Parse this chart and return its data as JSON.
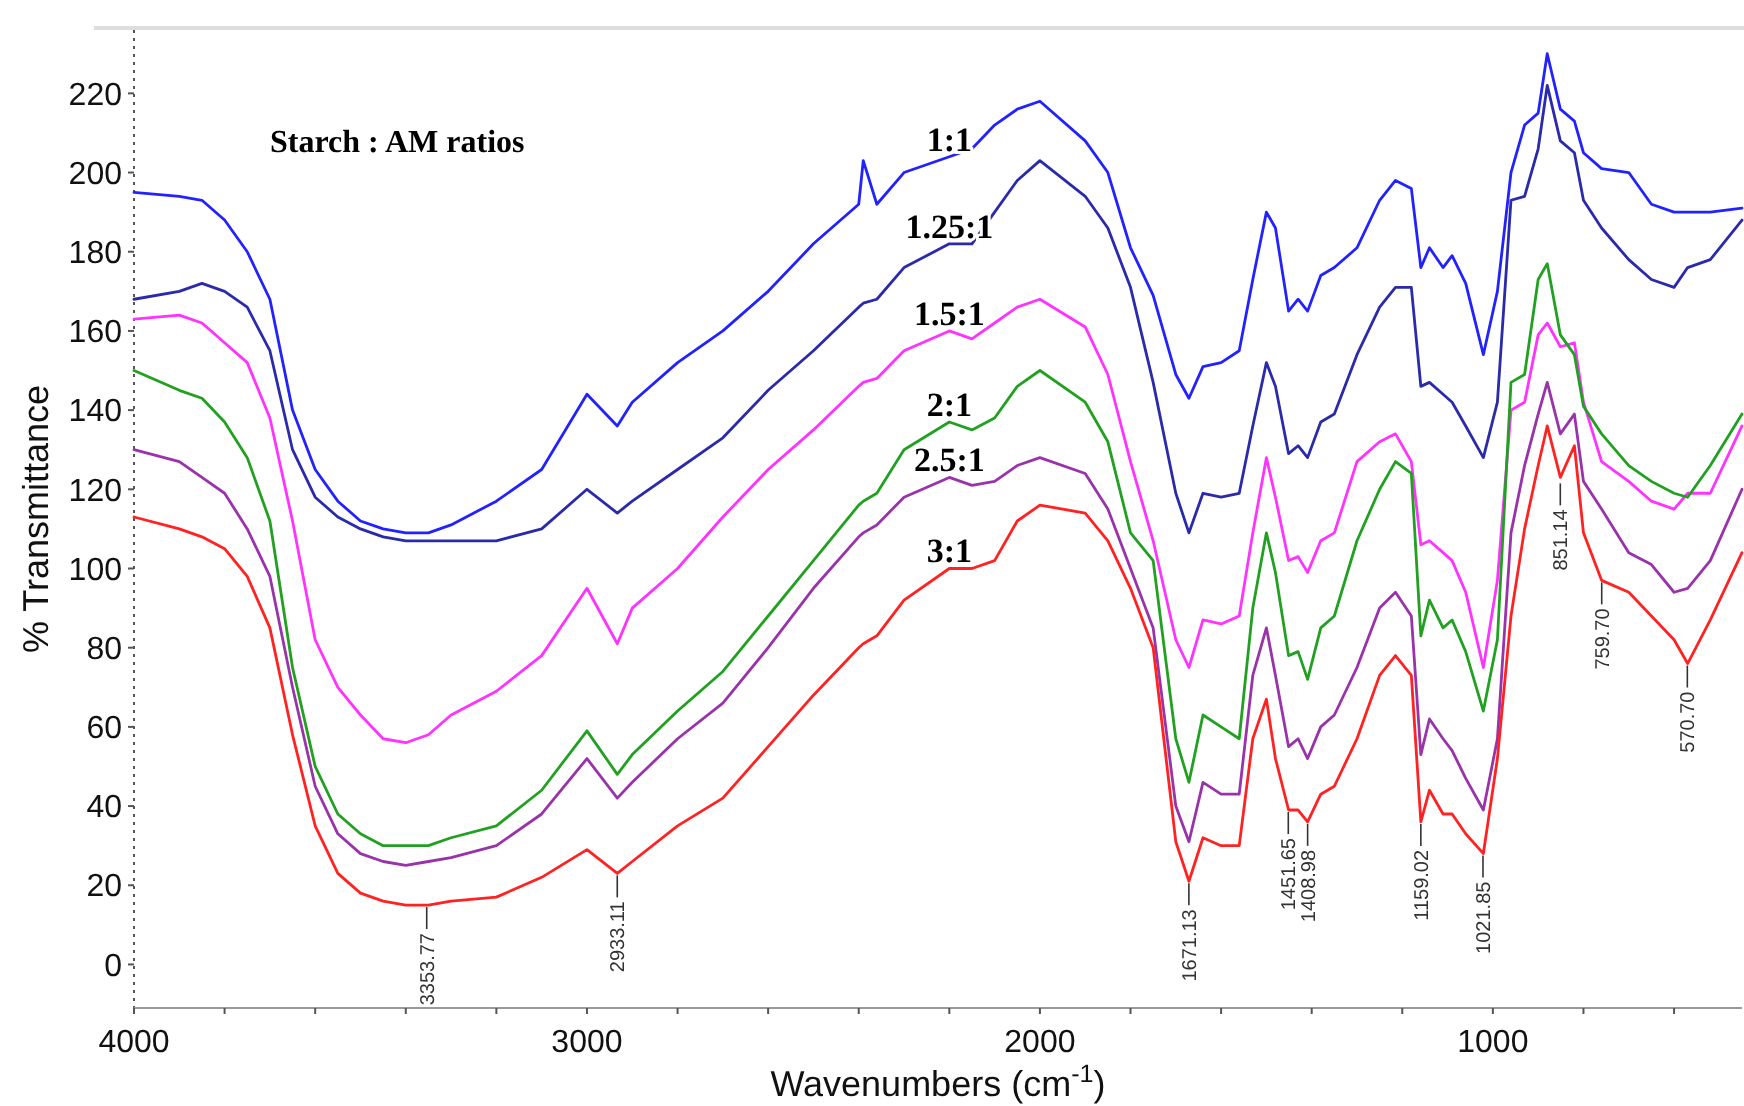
{
  "chart_data": {
    "type": "line",
    "legend_title": "Starch : AM ratios",
    "xlabel": "Wavenumbers (cm$^{-1}$)",
    "ylabel": "% Transmittance",
    "xlim": [
      4000,
      450
    ],
    "ylim": [
      -11,
      236
    ],
    "xticks": [
      4000,
      {
        "value": 3800,
        "label": null
      },
      {
        "value": 3600,
        "label": null
      },
      {
        "value": 3400,
        "label": null
      },
      {
        "value": 3200,
        "label": null
      },
      3000,
      {
        "value": 2800,
        "label": null
      },
      {
        "value": 2600,
        "label": null
      },
      {
        "value": 2400,
        "label": null
      },
      {
        "value": 2200,
        "label": null
      },
      2000,
      {
        "value": 1800,
        "label": null
      },
      {
        "value": 1600,
        "label": null
      },
      {
        "value": 1400,
        "label": null
      },
      {
        "value": 1200,
        "label": null
      },
      1000,
      {
        "value": 800,
        "label": null
      },
      {
        "value": 600,
        "label": null
      }
    ],
    "yticks": [
      0,
      20,
      40,
      60,
      80,
      100,
      120,
      140,
      160,
      180,
      200,
      220
    ],
    "x": [
      4000,
      3900,
      3850,
      3800,
      3750,
      3700,
      3650,
      3600,
      3550,
      3500,
      3450,
      3400,
      3350,
      3300,
      3200,
      3100,
      3000,
      2933,
      2900,
      2800,
      2700,
      2600,
      2500,
      2400,
      2390,
      2360,
      2300,
      2200,
      2150,
      2100,
      2050,
      2000,
      1900,
      1850,
      1800,
      1750,
      1700,
      1671,
      1640,
      1600,
      1560,
      1530,
      1500,
      1480,
      1451,
      1430,
      1409,
      1380,
      1350,
      1300,
      1250,
      1215,
      1180,
      1159,
      1140,
      1110,
      1090,
      1060,
      1021,
      990,
      960,
      930,
      900,
      880,
      851,
      820,
      800,
      760,
      700,
      650,
      600,
      570,
      520,
      450
    ],
    "series": [
      {
        "name": "1:1",
        "color": "#2222ff",
        "values": [
          195,
          194,
          193,
          188,
          180,
          168,
          140,
          125,
          117,
          112,
          110,
          109,
          109,
          111,
          117,
          125,
          144,
          136,
          142,
          152,
          160,
          170,
          182,
          192,
          203,
          192,
          200,
          204,
          206,
          212,
          216,
          218,
          208,
          200,
          181,
          169,
          149,
          143,
          151,
          152,
          155,
          173,
          190,
          186,
          165,
          168,
          165,
          174,
          176,
          181,
          193,
          198,
          196,
          176,
          181,
          176,
          179,
          172,
          154,
          170,
          200,
          212,
          215,
          230,
          216,
          213,
          205,
          201,
          200,
          192,
          190,
          190,
          190,
          191
        ]
      },
      {
        "name": "1.25:1",
        "color": "#2a2aaa",
        "values": [
          168,
          170,
          172,
          170,
          166,
          155,
          130,
          118,
          113,
          110,
          108,
          107,
          107,
          107,
          107,
          110,
          120,
          114,
          117,
          125,
          133,
          145,
          155,
          166,
          167,
          168,
          176,
          182,
          182,
          190,
          198,
          203,
          194,
          186,
          171,
          147,
          119,
          109,
          119,
          118,
          119,
          136,
          152,
          146,
          129,
          131,
          128,
          137,
          139,
          154,
          166,
          171,
          171,
          146,
          147,
          144,
          142,
          136,
          128,
          142,
          193,
          194,
          206,
          222,
          208,
          205,
          193,
          186,
          178,
          173,
          171,
          176,
          178,
          188
        ]
      },
      {
        "name": "1.5:1",
        "color": "#ff33ff",
        "values": [
          163,
          164,
          162,
          157,
          152,
          138,
          112,
          82,
          70,
          63,
          57,
          56,
          58,
          63,
          69,
          78,
          95,
          81,
          90,
          100,
          113,
          125,
          135,
          146,
          147,
          148,
          155,
          160,
          158,
          162,
          166,
          168,
          161,
          149,
          127,
          107,
          82,
          75,
          87,
          86,
          88,
          109,
          128,
          118,
          102,
          103,
          99,
          107,
          109,
          127,
          132,
          134,
          127,
          106,
          107,
          104,
          102,
          94,
          75,
          97,
          140,
          142,
          159,
          162,
          156,
          157,
          142,
          127,
          122,
          117,
          115,
          119,
          119,
          136
        ]
      },
      {
        "name": "2:1",
        "color": "#22a022",
        "values": [
          150,
          145,
          143,
          137,
          128,
          112,
          75,
          50,
          38,
          33,
          30,
          30,
          30,
          32,
          35,
          44,
          59,
          48,
          53,
          64,
          74,
          88,
          102,
          116,
          117,
          119,
          130,
          137,
          135,
          138,
          146,
          150,
          142,
          132,
          109,
          102,
          57,
          46,
          63,
          60,
          57,
          90,
          109,
          99,
          78,
          79,
          72,
          85,
          88,
          107,
          120,
          127,
          124,
          83,
          92,
          85,
          87,
          79,
          64,
          82,
          147,
          149,
          173,
          177,
          159,
          154,
          141,
          134,
          126,
          122,
          119,
          118,
          126,
          139
        ]
      },
      {
        "name": "2.5:1",
        "color": "#9933aa",
        "values": [
          130,
          127,
          123,
          119,
          110,
          98,
          70,
          45,
          33,
          28,
          26,
          25,
          26,
          27,
          30,
          38,
          52,
          42,
          46,
          57,
          66,
          80,
          95,
          108,
          109,
          111,
          118,
          123,
          121,
          122,
          126,
          128,
          124,
          115,
          100,
          85,
          40,
          31,
          46,
          43,
          43,
          73,
          85,
          73,
          55,
          57,
          52,
          60,
          63,
          75,
          90,
          94,
          88,
          53,
          62,
          57,
          54,
          47,
          39,
          57,
          109,
          126,
          139,
          147,
          134,
          139,
          122,
          115,
          104,
          101,
          94,
          95,
          102,
          120
        ]
      },
      {
        "name": "3:1",
        "color": "#ff2222",
        "values": [
          113,
          110,
          108,
          105,
          98,
          85,
          58,
          35,
          23,
          18,
          16,
          15,
          15,
          16,
          17,
          22,
          29,
          23,
          26,
          35,
          42,
          55,
          68,
          80,
          81,
          83,
          92,
          100,
          100,
          102,
          112,
          116,
          114,
          107,
          95,
          80,
          31,
          21,
          32,
          30,
          30,
          57,
          67,
          52,
          39,
          39,
          36,
          43,
          45,
          57,
          73,
          78,
          73,
          36,
          44,
          38,
          38,
          33,
          28,
          52,
          88,
          110,
          126,
          136,
          123,
          131,
          109,
          97,
          94,
          88,
          82,
          76,
          87,
          104
        ]
      }
    ],
    "annotations": [
      {
        "text": "3353.77",
        "x": 3353.77,
        "y": 15
      },
      {
        "text": "2933.11",
        "x": 2933.11,
        "y": 23
      },
      {
        "text": "1671.13",
        "x": 1671.13,
        "y": 21
      },
      {
        "text": "1451.65",
        "x": 1451.65,
        "y": 39
      },
      {
        "text": "1408.98",
        "x": 1408.98,
        "y": 36
      },
      {
        "text": "1159.02",
        "x": 1159.02,
        "y": 36
      },
      {
        "text": "1021.85",
        "x": 1021.85,
        "y": 28
      },
      {
        "text": "851.14",
        "x": 851.14,
        "y": 122
      },
      {
        "text": "759.70",
        "x": 759.7,
        "y": 97
      },
      {
        "text": "570.70",
        "x": 570.7,
        "y": 76
      }
    ]
  }
}
